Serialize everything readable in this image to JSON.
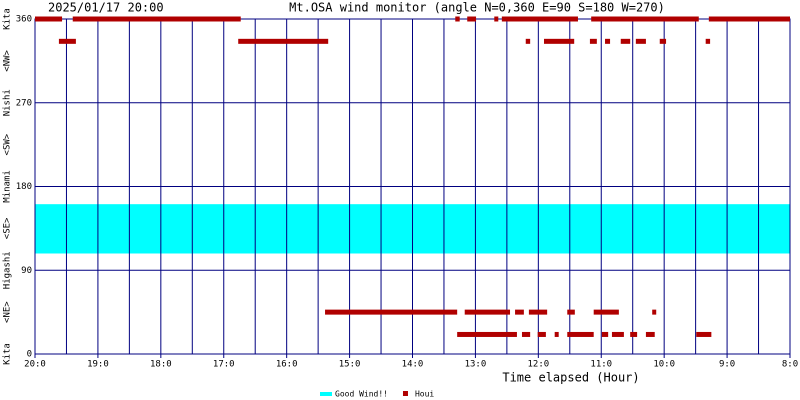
{
  "chart_data": {
    "type": "range",
    "date": "2025/01/17 20:00",
    "title": "Mt.OSA wind monitor (angle N=0,360 E=90 S=180 W=270)",
    "x_label": "Time elapsed (Hour)",
    "xlim": [
      20,
      8
    ],
    "ylim": [
      0,
      360
    ],
    "xticks": [
      {
        "value": 20,
        "label": "20:0"
      },
      {
        "value": 19,
        "label": "19:0"
      },
      {
        "value": 18,
        "label": "18:0"
      },
      {
        "value": 17,
        "label": "17:0"
      },
      {
        "value": 16,
        "label": "16:0"
      },
      {
        "value": 15,
        "label": "15:0"
      },
      {
        "value": 14,
        "label": "14:0"
      },
      {
        "value": 13,
        "label": "13:0"
      },
      {
        "value": 12,
        "label": "12:0"
      },
      {
        "value": 11,
        "label": "11:0"
      },
      {
        "value": 10,
        "label": "10:0"
      },
      {
        "value": 9,
        "label": "9:0"
      },
      {
        "value": 8,
        "label": "8:0"
      }
    ],
    "xgrid": [
      20,
      19.5,
      19,
      18.5,
      18,
      17.5,
      17,
      16.5,
      16,
      15.5,
      15,
      14.5,
      14,
      13.5,
      13,
      12.5,
      12,
      11.5,
      11,
      10.5,
      10,
      9.5,
      9,
      8.5,
      8
    ],
    "yticks": [
      0,
      90,
      180,
      270,
      360
    ],
    "direction_labels": [
      {
        "value": 0,
        "label": "Kita"
      },
      {
        "value": 45,
        "label": "<NE>"
      },
      {
        "value": 90,
        "label": "Higashi"
      },
      {
        "value": 135,
        "label": "<SE>"
      },
      {
        "value": 180,
        "label": "Minami"
      },
      {
        "value": 225,
        "label": "<SW>"
      },
      {
        "value": 270,
        "label": "Nishi"
      },
      {
        "value": 315,
        "label": "<NW>"
      },
      {
        "value": 360,
        "label": "Kita"
      }
    ],
    "series": [
      {
        "name": "Good Wind!!",
        "color": "#00ffff",
        "band": [
          108,
          161
        ]
      },
      {
        "name": "Houi",
        "color": "#b00000",
        "segments": [
          {
            "x": [
              20.0,
              19.57
            ],
            "y": 360
          },
          {
            "x": [
              19.4,
              16.73
            ],
            "y": 360
          },
          {
            "x": [
              13.32,
              13.25
            ],
            "y": 360
          },
          {
            "x": [
              13.13,
              12.99
            ],
            "y": 360
          },
          {
            "x": [
              12.7,
              12.64
            ],
            "y": 360
          },
          {
            "x": [
              12.58,
              11.37
            ],
            "y": 360
          },
          {
            "x": [
              11.16,
              9.45
            ],
            "y": 360
          },
          {
            "x": [
              9.29,
              8.0
            ],
            "y": 360
          },
          {
            "x": [
              19.62,
              19.35
            ],
            "y": 336
          },
          {
            "x": [
              16.77,
              15.34
            ],
            "y": 336
          },
          {
            "x": [
              12.2,
              12.13
            ],
            "y": 336
          },
          {
            "x": [
              11.91,
              11.43
            ],
            "y": 336
          },
          {
            "x": [
              11.18,
              11.07
            ],
            "y": 336
          },
          {
            "x": [
              10.94,
              10.86
            ],
            "y": 336
          },
          {
            "x": [
              10.69,
              10.54
            ],
            "y": 336
          },
          {
            "x": [
              10.45,
              10.29
            ],
            "y": 336
          },
          {
            "x": [
              10.07,
              9.97
            ],
            "y": 336
          },
          {
            "x": [
              9.34,
              9.27
            ],
            "y": 336
          },
          {
            "x": [
              15.39,
              13.29
            ],
            "y": 45
          },
          {
            "x": [
              13.17,
              12.45
            ],
            "y": 45
          },
          {
            "x": [
              12.37,
              12.23
            ],
            "y": 45
          },
          {
            "x": [
              12.15,
              11.86
            ],
            "y": 45
          },
          {
            "x": [
              11.54,
              11.42
            ],
            "y": 45
          },
          {
            "x": [
              11.12,
              10.72
            ],
            "y": 45
          },
          {
            "x": [
              10.19,
              10.13
            ],
            "y": 45
          },
          {
            "x": [
              13.29,
              12.34
            ],
            "y": 21
          },
          {
            "x": [
              12.26,
              12.13
            ],
            "y": 21
          },
          {
            "x": [
              12.01,
              11.88
            ],
            "y": 21
          },
          {
            "x": [
              11.74,
              11.69
            ],
            "y": 21
          },
          {
            "x": [
              11.54,
              11.12
            ],
            "y": 21
          },
          {
            "x": [
              10.99,
              10.89
            ],
            "y": 21
          },
          {
            "x": [
              10.83,
              10.64
            ],
            "y": 21
          },
          {
            "x": [
              10.54,
              10.43
            ],
            "y": 21
          },
          {
            "x": [
              10.29,
              10.15
            ],
            "y": 21
          },
          {
            "x": [
              9.49,
              9.25
            ],
            "y": 21
          }
        ]
      }
    ]
  }
}
